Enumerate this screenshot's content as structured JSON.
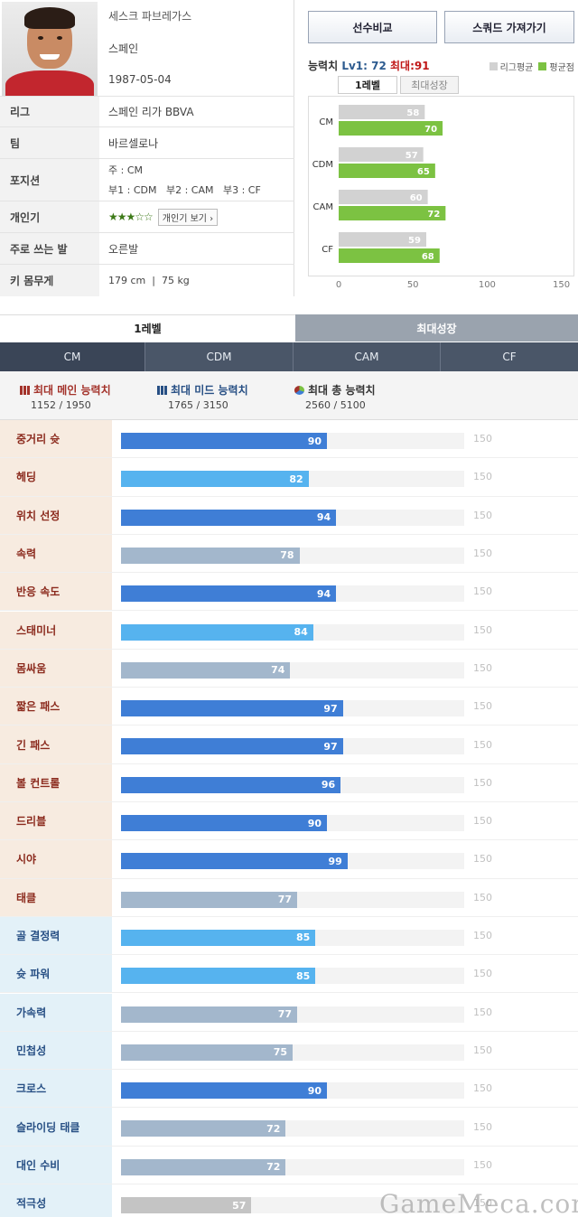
{
  "player": {
    "name": "세스크 파브레가스",
    "nation": "스페인",
    "birth": "1987-05-04",
    "rows": [
      {
        "label": "리그",
        "value": "스페인 리가 BBVA"
      },
      {
        "label": "팀",
        "value": "바르셀로나"
      },
      {
        "label": "포지션",
        "value_main": "주 : CM",
        "value_sub": "부1 : CDM   부2 : CAM   부3 : CF"
      },
      {
        "label": "개인기",
        "stars": "★★★☆☆",
        "button": "개인기 보기 ›"
      },
      {
        "label": "주로 쓰는 발",
        "value": "오른발"
      },
      {
        "label": "키 몸무게",
        "value": "179 cm  |  75 kg"
      }
    ]
  },
  "buttons": {
    "compare": "선수비교",
    "squad": "스쿼드 가져가기"
  },
  "stats_header": {
    "title": "능력치",
    "lv": "Lv1: 72",
    "max": "최대:91",
    "legend_league": "리그평균",
    "legend_avg": "평균점"
  },
  "stats_tabs": [
    "1레벨",
    "최대성장"
  ],
  "colors": {
    "league": "#d2d2d2",
    "avg": "#7cc242",
    "blue_dark": "#3f7ed6",
    "blue_light": "#56b3ef",
    "gray_blue": "#a3b7cc",
    "gray": "#c4c4c4"
  },
  "chart_data": {
    "type": "bar",
    "orientation": "horizontal",
    "categories": [
      "CM",
      "CDM",
      "CAM",
      "CF"
    ],
    "series": [
      {
        "name": "리그평균",
        "values": [
          58,
          57,
          60,
          59
        ]
      },
      {
        "name": "평균점",
        "values": [
          70,
          65,
          72,
          68
        ]
      }
    ],
    "xlim": [
      0,
      160
    ],
    "ticks": [
      0,
      50,
      100,
      150
    ],
    "legend": "top-right"
  },
  "level_tabs": [
    "1레벨",
    "최대성장"
  ],
  "position_tabs": [
    "CM",
    "CDM",
    "CAM",
    "CF"
  ],
  "summary": [
    {
      "title": "최대 메인 능력치",
      "value": "1152 / 1950",
      "color": "#a3322a"
    },
    {
      "title": "최대 미드 능력치",
      "value": "1765 / 3150",
      "color": "#274f84"
    },
    {
      "title": "최대 총 능력치",
      "value": "2560 / 5100",
      "color": "#333333"
    }
  ],
  "attr_max": "150",
  "attributes": [
    {
      "label": "중거리 슛",
      "value": 90,
      "group": "main",
      "tone": "dark"
    },
    {
      "label": "헤딩",
      "value": 82,
      "group": "main",
      "tone": "light"
    },
    {
      "label": "위치 선정",
      "value": 94,
      "group": "main",
      "tone": "dark"
    },
    {
      "label": "속력",
      "value": 78,
      "group": "main",
      "tone": "grayblue"
    },
    {
      "label": "반응 속도",
      "value": 94,
      "group": "main",
      "tone": "dark"
    },
    {
      "label": "스태미너",
      "value": 84,
      "group": "main",
      "tone": "light"
    },
    {
      "label": "몸싸움",
      "value": 74,
      "group": "main",
      "tone": "grayblue"
    },
    {
      "label": "짧은 패스",
      "value": 97,
      "group": "main",
      "tone": "dark"
    },
    {
      "label": "긴 패스",
      "value": 97,
      "group": "main",
      "tone": "dark"
    },
    {
      "label": "볼 컨트롤",
      "value": 96,
      "group": "main",
      "tone": "dark"
    },
    {
      "label": "드리블",
      "value": 90,
      "group": "main",
      "tone": "dark"
    },
    {
      "label": "시야",
      "value": 99,
      "group": "main",
      "tone": "dark"
    },
    {
      "label": "태클",
      "value": 77,
      "group": "main",
      "tone": "grayblue"
    },
    {
      "label": "골 결정력",
      "value": 85,
      "group": "mid",
      "tone": "light"
    },
    {
      "label": "슛 파워",
      "value": 85,
      "group": "mid",
      "tone": "light"
    },
    {
      "label": "가속력",
      "value": 77,
      "group": "mid",
      "tone": "grayblue"
    },
    {
      "label": "민첩성",
      "value": 75,
      "group": "mid",
      "tone": "grayblue"
    },
    {
      "label": "크로스",
      "value": 90,
      "group": "mid",
      "tone": "dark"
    },
    {
      "label": "슬라이딩 태클",
      "value": 72,
      "group": "mid",
      "tone": "grayblue"
    },
    {
      "label": "대인 수비",
      "value": 72,
      "group": "mid",
      "tone": "grayblue"
    },
    {
      "label": "적극성",
      "value": 57,
      "group": "mid",
      "tone": "gray"
    }
  ],
  "watermark": "GameMeca.com"
}
